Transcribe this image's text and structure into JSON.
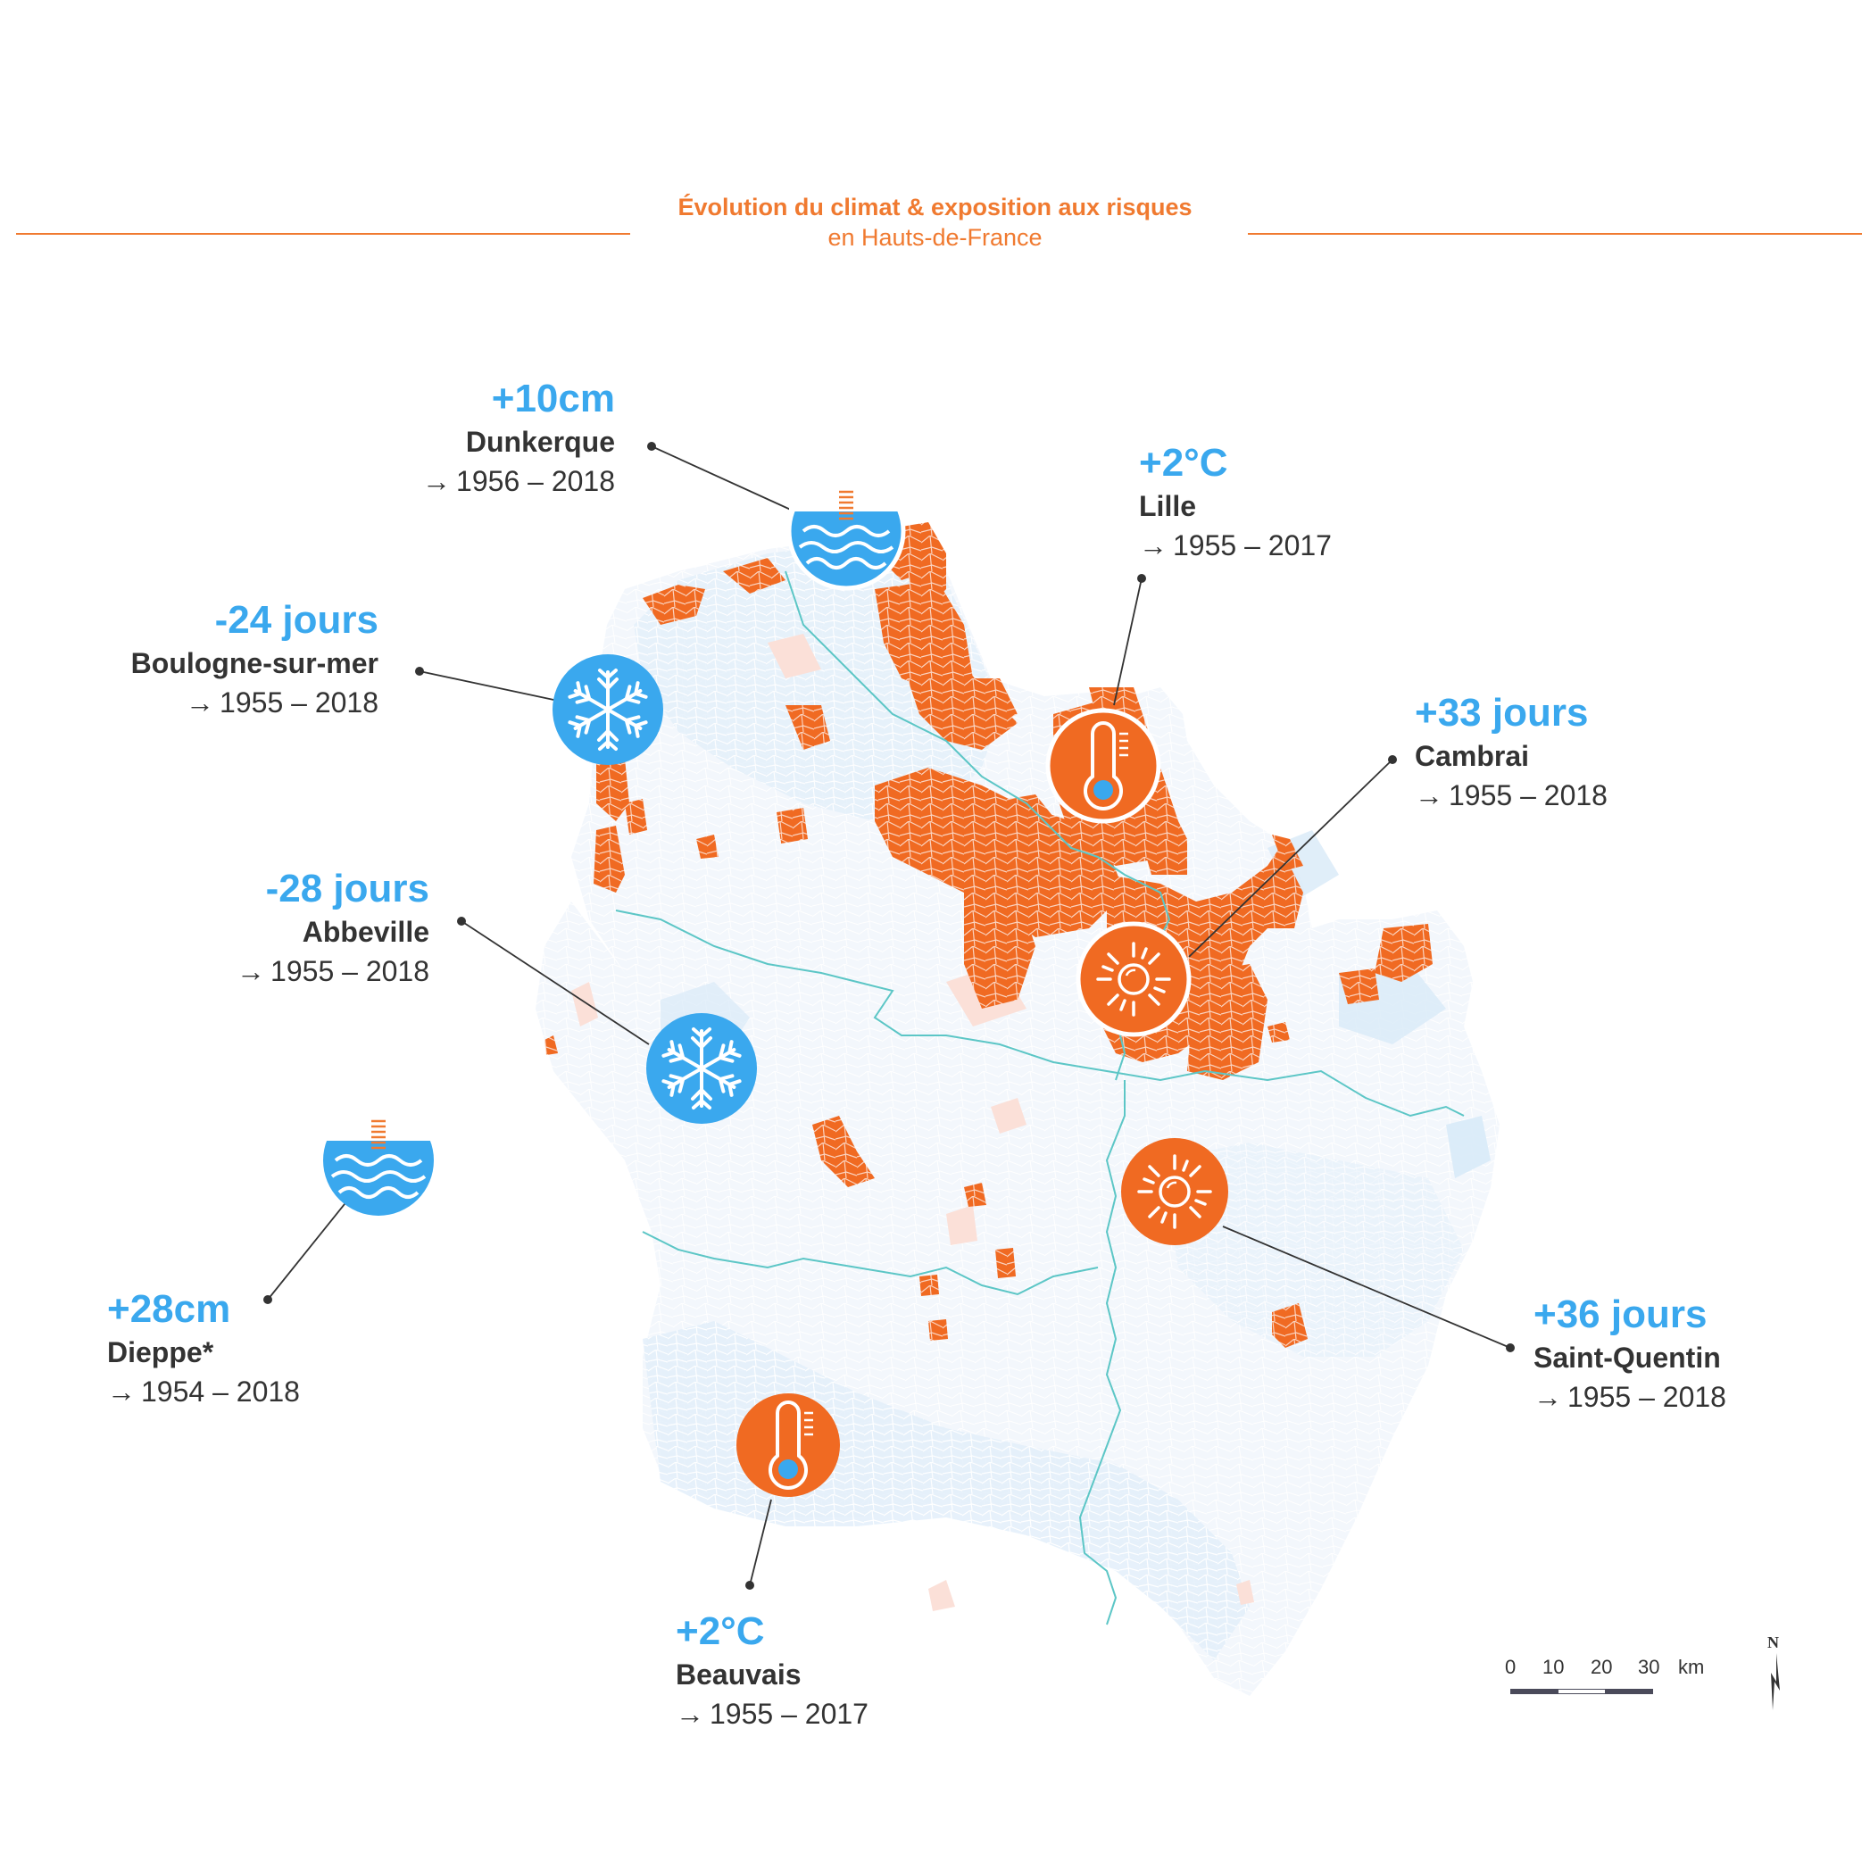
{
  "header": {
    "title": "Évolution du climat & exposition aux risques",
    "subtitle": "en Hauts-de-France"
  },
  "colors": {
    "accent_orange": "#f07a30",
    "value_blue": "#3aa8ee",
    "territory_light_blue": "#d8eaf8",
    "territory_light_pink": "#fbe0d8",
    "boundary_teal": "#5cc6c6"
  },
  "locations": [
    {
      "id": "dunkerque",
      "value": "+10cm",
      "city": "Dunkerque",
      "period": "1956 – 2018",
      "icon": "sea-level-icon"
    },
    {
      "id": "lille",
      "value": "+2°C",
      "city": "Lille",
      "period": "1955 – 2017",
      "icon": "thermometer-icon"
    },
    {
      "id": "boulogne",
      "value": "-24 jours",
      "city": "Boulogne-sur-mer",
      "period": "1955 – 2018",
      "icon": "snowflake-icon"
    },
    {
      "id": "cambrai",
      "value": "+33 jours",
      "city": "Cambrai",
      "period": "1955 – 2018",
      "icon": "sun-icon"
    },
    {
      "id": "abbeville",
      "value": "-28 jours",
      "city": "Abbeville",
      "period": "1955 – 2018",
      "icon": "snowflake-icon"
    },
    {
      "id": "dieppe",
      "value": "+28cm",
      "city": "Dieppe*",
      "period": "1954 – 2018",
      "icon": "sea-level-icon"
    },
    {
      "id": "saint-quentin",
      "value": "+36 jours",
      "city": "Saint-Quentin",
      "period": "1955 – 2018",
      "icon": "sun-icon"
    },
    {
      "id": "beauvais",
      "value": "+2°C",
      "city": "Beauvais",
      "period": "1955 – 2017",
      "icon": "thermometer-icon"
    }
  ],
  "arrow_symbol": "→",
  "scale_bar": {
    "ticks": [
      "0",
      "10",
      "20",
      "30"
    ],
    "unit": "km"
  },
  "north_arrow": {
    "label": "N"
  }
}
